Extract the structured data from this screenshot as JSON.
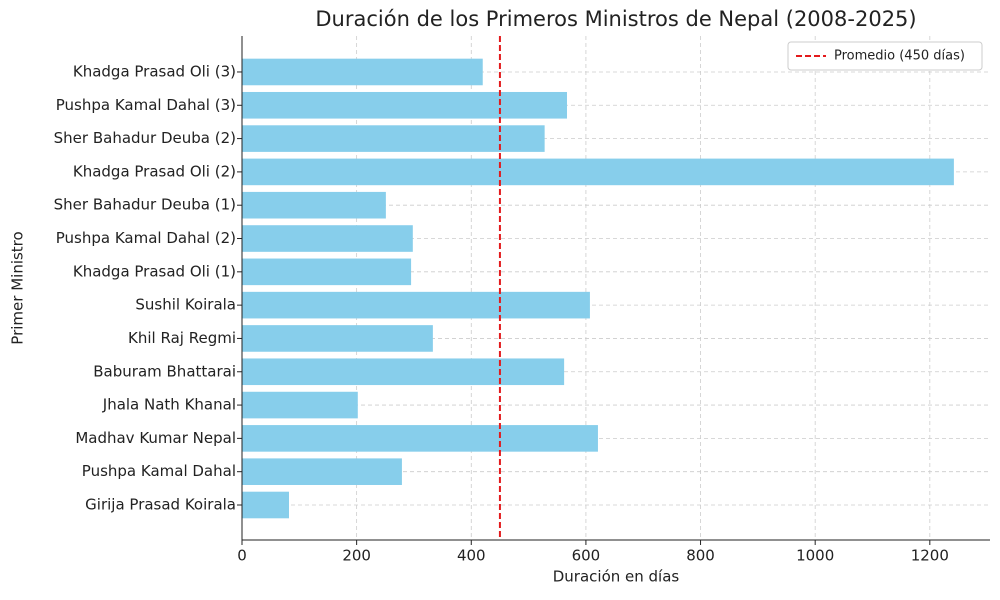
{
  "chart_data": {
    "type": "barh",
    "title": "Duración de los Primeros Ministros de Nepal (2008-2025)",
    "x_label": "Duración en días",
    "y_label": "Primer Ministro",
    "categories": [
      "Girija Prasad Koirala",
      "Pushpa Kamal Dahal",
      "Madhav Kumar Nepal",
      "Jhala Nath Khanal",
      "Baburam Bhattarai",
      "Khil Raj Regmi",
      "Sushil Koirala",
      "Khadga Prasad Oli (1)",
      "Pushpa Kamal Dahal (2)",
      "Sher Bahadur Deuba (1)",
      "Khadga Prasad Oli (2)",
      "Sher Bahadur Deuba (2)",
      "Pushpa Kamal Dahal (3)",
      "Khadga Prasad Oli (3)"
    ],
    "values": [
      82,
      279,
      621,
      202,
      562,
      333,
      607,
      295,
      298,
      251,
      1242,
      528,
      567,
      420
    ],
    "color": "#87ceeb",
    "xlim": [
      0,
      1305
    ],
    "xticks": [
      0,
      200,
      400,
      600,
      800,
      1000,
      1200
    ],
    "grid": true,
    "reference_line": {
      "value": 450,
      "label": "Promedio (450 días)",
      "color": "#e31a1c"
    },
    "legend": "upper right"
  }
}
